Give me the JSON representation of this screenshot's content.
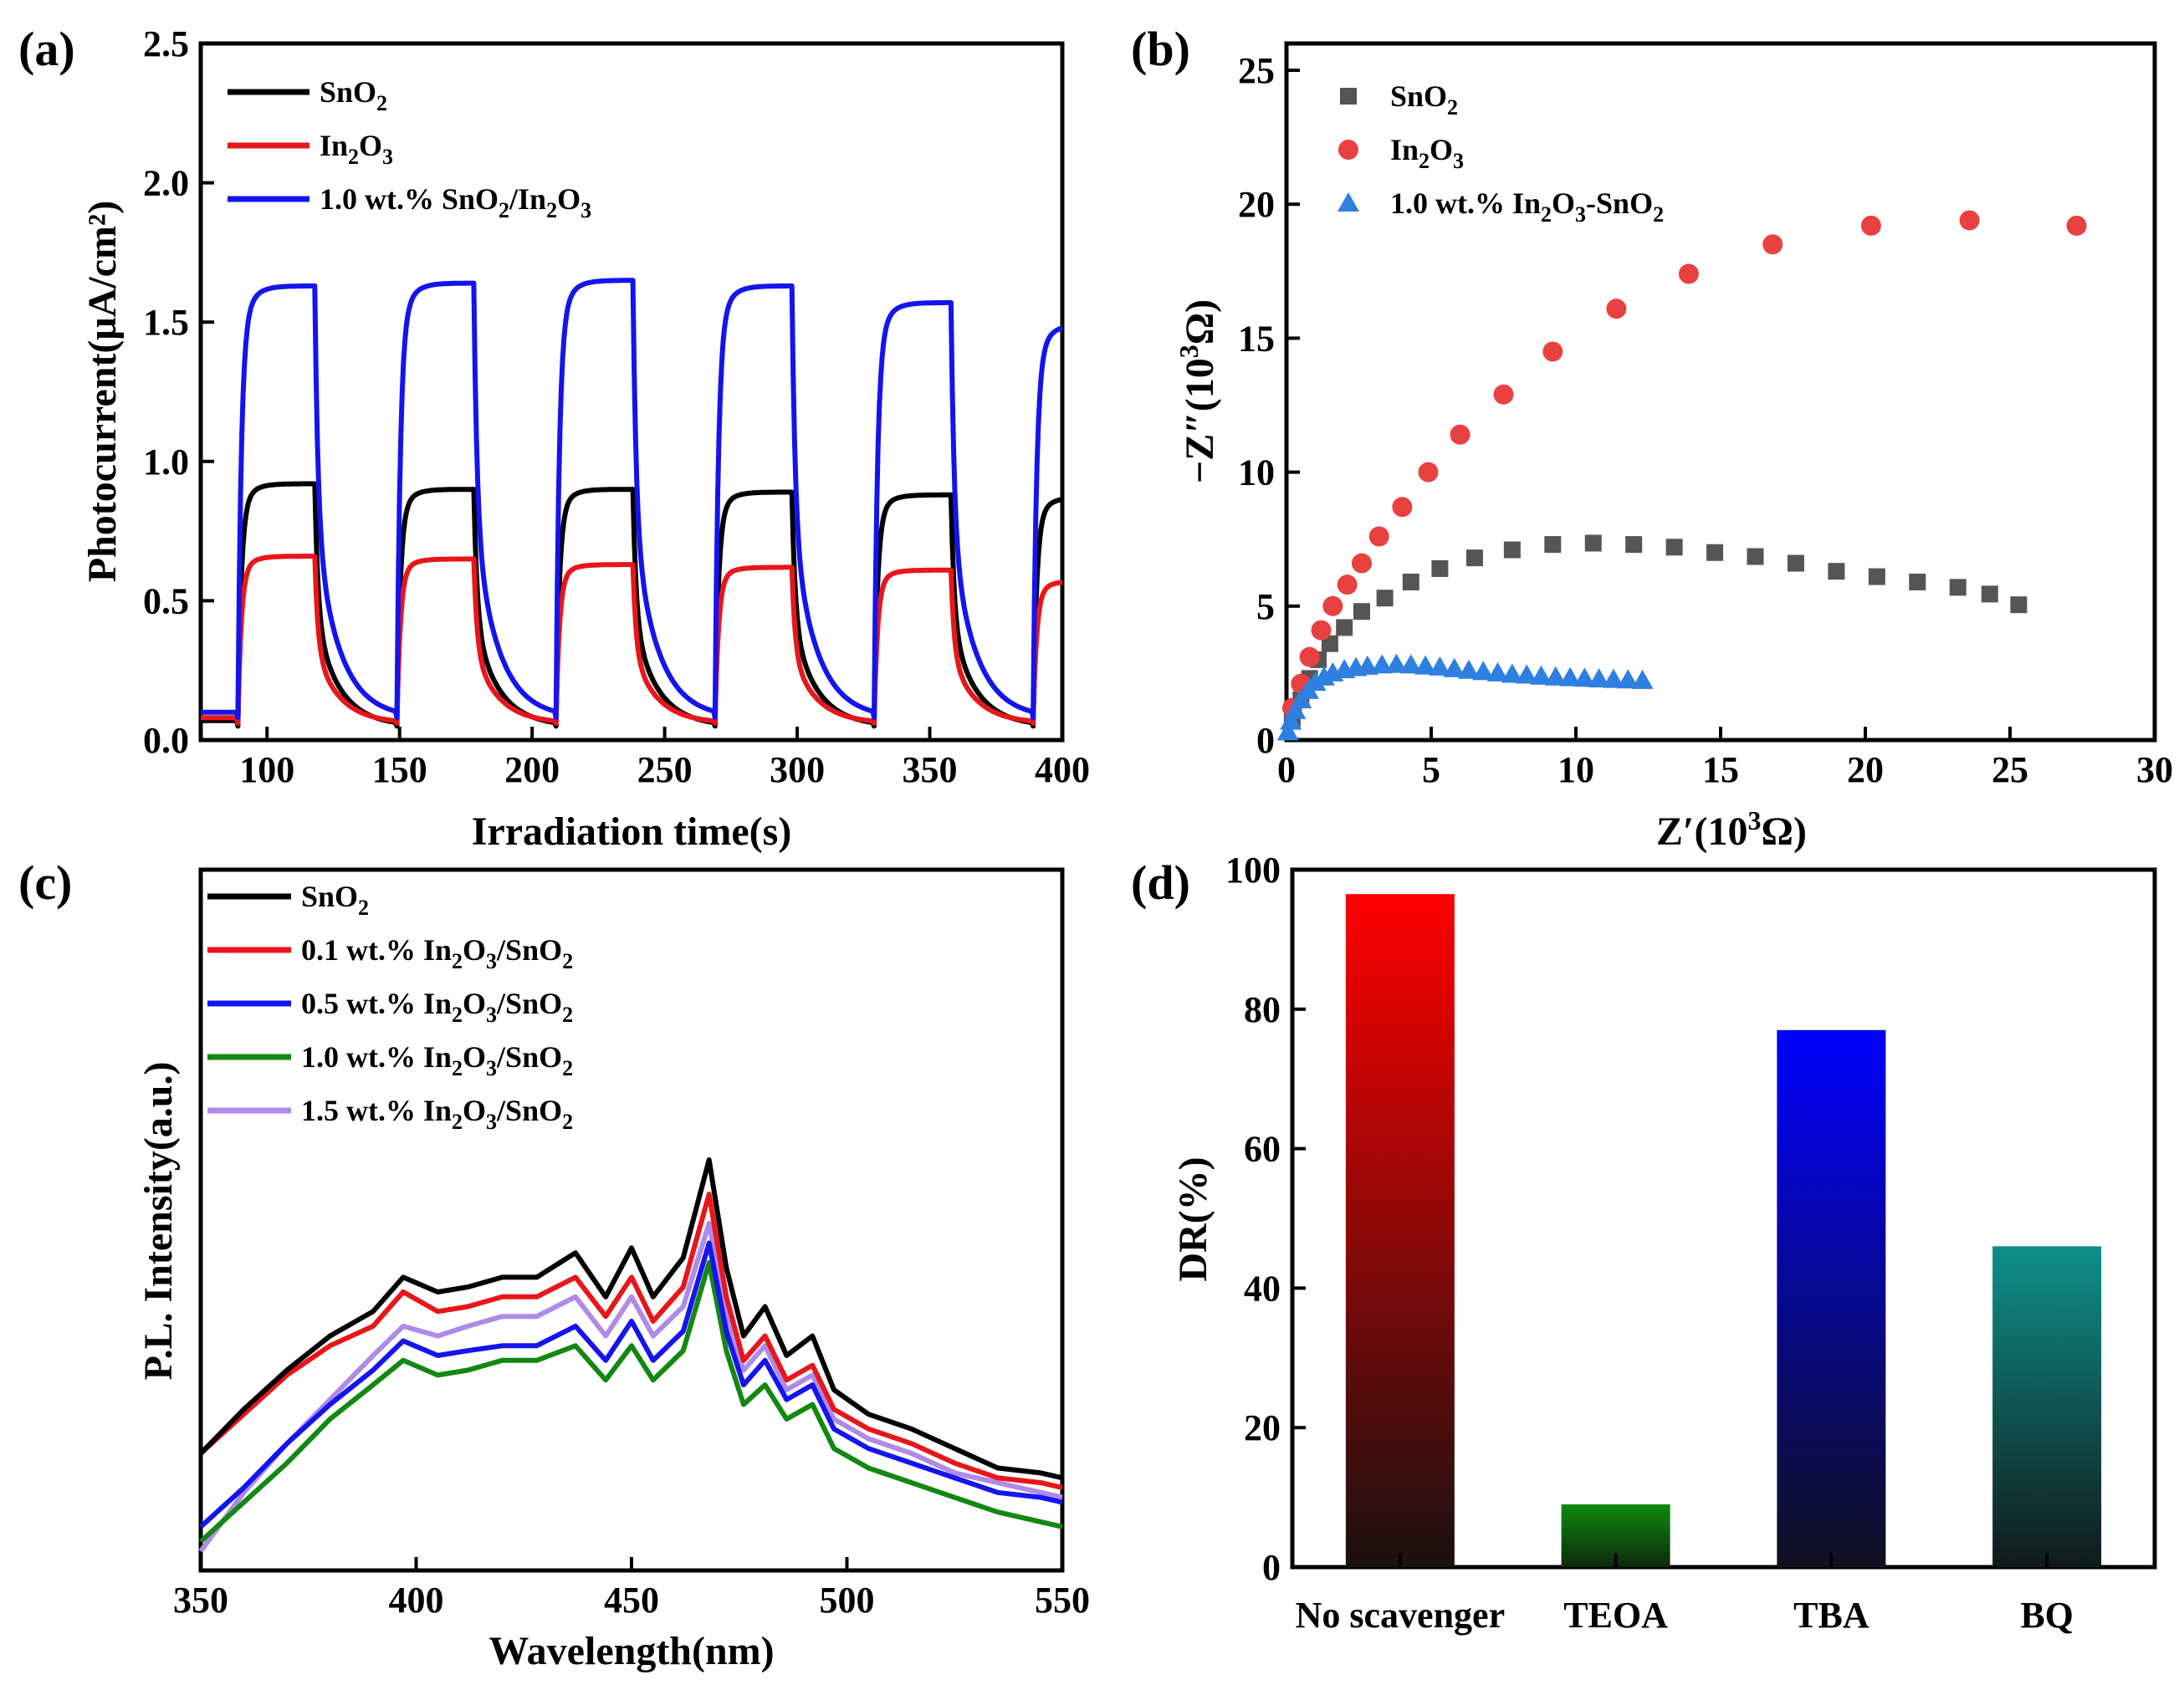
{
  "chart_data": [
    {
      "panel": "(a)",
      "type": "line",
      "xlabel": "Irradiation time(s)",
      "ylabel": "Photocurrent(μA/cm²)",
      "xlim": [
        75,
        400
      ],
      "ylim": [
        0,
        2.5
      ],
      "xticks": [
        "100",
        "150",
        "200",
        "250",
        "300",
        "350",
        "400"
      ],
      "yticks": [
        "0.0",
        "0.5",
        "1.0",
        "1.5",
        "2.0",
        "2.5"
      ],
      "cycles": {
        "on_times": [
          89,
          149,
          209,
          269,
          329,
          389
        ],
        "off_times": [
          118,
          178,
          238,
          298,
          358
        ]
      },
      "series": [
        {
          "name": "SnO2",
          "legend_main": "SnO",
          "legend_sub": "2",
          "color": "#000000",
          "base": 0.05,
          "plateau": [
            0.92,
            0.9,
            0.9,
            0.89,
            0.88,
            0.87
          ]
        },
        {
          "name": "In2O3",
          "legend_main": "In",
          "legend_sub": "2",
          "legend_main2": "O",
          "legend_sub2": "3",
          "color": "#e8161b",
          "base": 0.06,
          "plateau": [
            0.66,
            0.65,
            0.63,
            0.62,
            0.61,
            0.57
          ]
        },
        {
          "name": "1.0 wt.% SnO2/In2O3",
          "legend_parts": [
            "1.0 wt.% SnO",
            "2",
            "/In",
            "2",
            "O",
            "3"
          ],
          "color": "#1414ee",
          "base": 0.08,
          "plateau": [
            1.63,
            1.64,
            1.65,
            1.63,
            1.57,
            1.49
          ]
        }
      ]
    },
    {
      "panel": "(b)",
      "type": "scatter",
      "xlabel": "Z′(10³Ω)",
      "xlabel_parts": [
        "Z′(10",
        "3",
        "Ω)"
      ],
      "ylabel": "−Z″(10³Ω)",
      "ylabel_parts": [
        "−Z″(10",
        "3",
        "Ω)"
      ],
      "xlim": [
        0,
        30
      ],
      "ylim": [
        0,
        26
      ],
      "xticks": [
        "0",
        "5",
        "10",
        "15",
        "20",
        "25",
        "30"
      ],
      "yticks": [
        "0",
        "5",
        "10",
        "15",
        "20",
        "25"
      ],
      "series": [
        {
          "name": "SnO2",
          "legend_parts": [
            "SnO",
            "2"
          ],
          "marker": "square",
          "color": "#555555",
          "points": [
            [
              0.2,
              0.8
            ],
            [
              0.5,
              1.5
            ],
            [
              0.8,
              2.3
            ],
            [
              1.1,
              3.0
            ],
            [
              1.5,
              3.6
            ],
            [
              2.0,
              4.2
            ],
            [
              2.6,
              4.8
            ],
            [
              3.4,
              5.3
            ],
            [
              4.3,
              5.9
            ],
            [
              5.3,
              6.4
            ],
            [
              6.5,
              6.8
            ],
            [
              7.8,
              7.1
            ],
            [
              9.2,
              7.3
            ],
            [
              10.6,
              7.35
            ],
            [
              12.0,
              7.3
            ],
            [
              13.4,
              7.2
            ],
            [
              14.8,
              7.0
            ],
            [
              16.2,
              6.85
            ],
            [
              17.6,
              6.6
            ],
            [
              19.0,
              6.3
            ],
            [
              20.4,
              6.1
            ],
            [
              21.8,
              5.9
            ],
            [
              23.2,
              5.7
            ],
            [
              24.3,
              5.45
            ],
            [
              25.3,
              5.05
            ]
          ]
        },
        {
          "name": "In2O3",
          "legend_parts": [
            "In",
            "2",
            "O",
            "3"
          ],
          "marker": "circle",
          "color": "#e8413f",
          "points": [
            [
              0.2,
              1.2
            ],
            [
              0.5,
              2.1
            ],
            [
              0.8,
              3.1
            ],
            [
              1.2,
              4.1
            ],
            [
              1.6,
              5.0
            ],
            [
              2.1,
              5.8
            ],
            [
              2.6,
              6.6
            ],
            [
              3.2,
              7.6
            ],
            [
              4.0,
              8.7
            ],
            [
              4.9,
              10.0
            ],
            [
              6.0,
              11.4
            ],
            [
              7.5,
              12.9
            ],
            [
              9.2,
              14.5
            ],
            [
              11.4,
              16.1
            ],
            [
              13.9,
              17.4
            ],
            [
              16.8,
              18.5
            ],
            [
              20.2,
              19.2
            ],
            [
              23.6,
              19.4
            ],
            [
              27.3,
              19.2
            ]
          ]
        },
        {
          "name": "1.0 wt.% In2O3-SnO2",
          "legend_parts": [
            "1.0 wt.% In",
            "2",
            "O",
            "3",
            "-SnO",
            "2"
          ],
          "marker": "triangle",
          "color": "#2e7fe0",
          "points": [
            [
              0.05,
              0.3
            ],
            [
              0.15,
              0.7
            ],
            [
              0.3,
              1.1
            ],
            [
              0.5,
              1.5
            ],
            [
              0.75,
              1.85
            ],
            [
              1.0,
              2.15
            ],
            [
              1.3,
              2.35
            ],
            [
              1.6,
              2.5
            ],
            [
              2.0,
              2.62
            ],
            [
              2.4,
              2.7
            ],
            [
              2.8,
              2.75
            ],
            [
              3.3,
              2.8
            ],
            [
              3.8,
              2.82
            ],
            [
              4.3,
              2.8
            ],
            [
              4.8,
              2.76
            ],
            [
              5.3,
              2.72
            ],
            [
              5.8,
              2.66
            ],
            [
              6.3,
              2.6
            ],
            [
              6.8,
              2.55
            ],
            [
              7.3,
              2.5
            ],
            [
              7.8,
              2.45
            ],
            [
              8.3,
              2.42
            ],
            [
              8.8,
              2.38
            ],
            [
              9.3,
              2.35
            ],
            [
              9.8,
              2.32
            ],
            [
              10.3,
              2.3
            ],
            [
              10.8,
              2.28
            ],
            [
              11.3,
              2.26
            ],
            [
              11.8,
              2.24
            ],
            [
              12.3,
              2.22
            ]
          ]
        }
      ]
    },
    {
      "panel": "(c)",
      "type": "line",
      "xlabel": "Wavelength(nm)",
      "ylabel": "P.L. Intensity(a.u.)",
      "xlim": [
        350,
        550
      ],
      "ylim": [
        0,
        1
      ],
      "xticks": [
        "350",
        "400",
        "450",
        "500",
        "550"
      ],
      "series": [
        {
          "name": "SnO2",
          "legend_parts": [
            "SnO",
            "2"
          ],
          "color": "#000000",
          "points": [
            [
              350,
              0.2
            ],
            [
              360,
              0.29
            ],
            [
              370,
              0.37
            ],
            [
              380,
              0.44
            ],
            [
              390,
              0.49
            ],
            [
              397,
              0.56
            ],
            [
              405,
              0.53
            ],
            [
              412,
              0.54
            ],
            [
              420,
              0.56
            ],
            [
              428,
              0.56
            ],
            [
              437,
              0.61
            ],
            [
              444,
              0.52
            ],
            [
              450,
              0.62
            ],
            [
              455,
              0.52
            ],
            [
              462,
              0.6
            ],
            [
              468,
              0.8
            ],
            [
              472,
              0.58
            ],
            [
              476,
              0.44
            ],
            [
              481,
              0.5
            ],
            [
              486,
              0.4
            ],
            [
              492,
              0.44
            ],
            [
              497,
              0.33
            ],
            [
              505,
              0.28
            ],
            [
              515,
              0.25
            ],
            [
              525,
              0.21
            ],
            [
              535,
              0.17
            ],
            [
              545,
              0.16
            ],
            [
              550,
              0.15
            ]
          ]
        },
        {
          "name": "0.1 wt.% In2O3/SnO2",
          "legend_parts": [
            "0.1 wt.% In",
            "2",
            "O",
            "3",
            "/SnO",
            "2"
          ],
          "color": "#e8161b",
          "points": [
            [
              350,
              0.2
            ],
            [
              360,
              0.28
            ],
            [
              370,
              0.36
            ],
            [
              380,
              0.42
            ],
            [
              390,
              0.46
            ],
            [
              397,
              0.53
            ],
            [
              405,
              0.49
            ],
            [
              412,
              0.5
            ],
            [
              420,
              0.52
            ],
            [
              428,
              0.52
            ],
            [
              437,
              0.56
            ],
            [
              444,
              0.48
            ],
            [
              450,
              0.56
            ],
            [
              455,
              0.47
            ],
            [
              462,
              0.54
            ],
            [
              468,
              0.73
            ],
            [
              472,
              0.52
            ],
            [
              476,
              0.39
            ],
            [
              481,
              0.44
            ],
            [
              486,
              0.35
            ],
            [
              492,
              0.38
            ],
            [
              497,
              0.29
            ],
            [
              505,
              0.25
            ],
            [
              515,
              0.22
            ],
            [
              525,
              0.18
            ],
            [
              535,
              0.15
            ],
            [
              545,
              0.14
            ],
            [
              550,
              0.13
            ]
          ]
        },
        {
          "name": "0.5 wt.% In2O3/SnO2",
          "legend_parts": [
            "0.5 wt.% In",
            "2",
            "O",
            "3",
            "/SnO",
            "2"
          ],
          "color": "#1414ee",
          "points": [
            [
              350,
              0.05
            ],
            [
              360,
              0.13
            ],
            [
              370,
              0.22
            ],
            [
              380,
              0.3
            ],
            [
              390,
              0.37
            ],
            [
              397,
              0.43
            ],
            [
              405,
              0.4
            ],
            [
              412,
              0.41
            ],
            [
              420,
              0.42
            ],
            [
              428,
              0.42
            ],
            [
              437,
              0.46
            ],
            [
              444,
              0.39
            ],
            [
              450,
              0.47
            ],
            [
              455,
              0.39
            ],
            [
              462,
              0.45
            ],
            [
              468,
              0.63
            ],
            [
              472,
              0.45
            ],
            [
              476,
              0.34
            ],
            [
              481,
              0.39
            ],
            [
              486,
              0.31
            ],
            [
              492,
              0.34
            ],
            [
              497,
              0.25
            ],
            [
              505,
              0.21
            ],
            [
              515,
              0.18
            ],
            [
              525,
              0.15
            ],
            [
              535,
              0.12
            ],
            [
              545,
              0.11
            ],
            [
              550,
              0.1
            ]
          ]
        },
        {
          "name": "1.0 wt.% In2O3/SnO2",
          "legend_parts": [
            "1.0 wt.% In",
            "2",
            "O",
            "3",
            "/SnO",
            "2"
          ],
          "color": "#118811",
          "points": [
            [
              350,
              0.02
            ],
            [
              360,
              0.1
            ],
            [
              370,
              0.18
            ],
            [
              380,
              0.27
            ],
            [
              390,
              0.34
            ],
            [
              397,
              0.39
            ],
            [
              405,
              0.36
            ],
            [
              412,
              0.37
            ],
            [
              420,
              0.39
            ],
            [
              428,
              0.39
            ],
            [
              437,
              0.42
            ],
            [
              444,
              0.35
            ],
            [
              450,
              0.42
            ],
            [
              455,
              0.35
            ],
            [
              462,
              0.41
            ],
            [
              468,
              0.59
            ],
            [
              472,
              0.41
            ],
            [
              476,
              0.3
            ],
            [
              481,
              0.34
            ],
            [
              486,
              0.27
            ],
            [
              492,
              0.3
            ],
            [
              497,
              0.21
            ],
            [
              505,
              0.17
            ],
            [
              515,
              0.14
            ],
            [
              525,
              0.11
            ],
            [
              535,
              0.08
            ],
            [
              545,
              0.06
            ],
            [
              550,
              0.05
            ]
          ]
        },
        {
          "name": "1.5 wt.% In2O3/SnO2",
          "legend_parts": [
            "1.5 wt.% In",
            "2",
            "O",
            "3",
            "/SnO",
            "2"
          ],
          "color": "#b08ae8",
          "points": [
            [
              350,
              0.0
            ],
            [
              360,
              0.12
            ],
            [
              370,
              0.22
            ],
            [
              380,
              0.31
            ],
            [
              390,
              0.4
            ],
            [
              397,
              0.46
            ],
            [
              405,
              0.44
            ],
            [
              412,
              0.46
            ],
            [
              420,
              0.48
            ],
            [
              428,
              0.48
            ],
            [
              437,
              0.52
            ],
            [
              444,
              0.44
            ],
            [
              450,
              0.52
            ],
            [
              455,
              0.44
            ],
            [
              462,
              0.5
            ],
            [
              468,
              0.67
            ],
            [
              472,
              0.48
            ],
            [
              476,
              0.37
            ],
            [
              481,
              0.42
            ],
            [
              486,
              0.33
            ],
            [
              492,
              0.36
            ],
            [
              497,
              0.27
            ],
            [
              505,
              0.23
            ],
            [
              515,
              0.2
            ],
            [
              525,
              0.16
            ],
            [
              535,
              0.14
            ],
            [
              545,
              0.12
            ],
            [
              550,
              0.11
            ]
          ]
        }
      ]
    },
    {
      "panel": "(d)",
      "type": "bar",
      "ylabel": "DR(%)",
      "ylim": [
        0,
        100
      ],
      "yticks": [
        "0",
        "20",
        "40",
        "60",
        "80",
        "100"
      ],
      "categories": [
        "No scavenger",
        "TEOA",
        "TBA",
        "BQ"
      ],
      "values": [
        96.5,
        9,
        77,
        46
      ],
      "colors": [
        "#ff0000",
        "#0f8a0f",
        "#0000ff",
        "#0e8f8a"
      ]
    }
  ]
}
